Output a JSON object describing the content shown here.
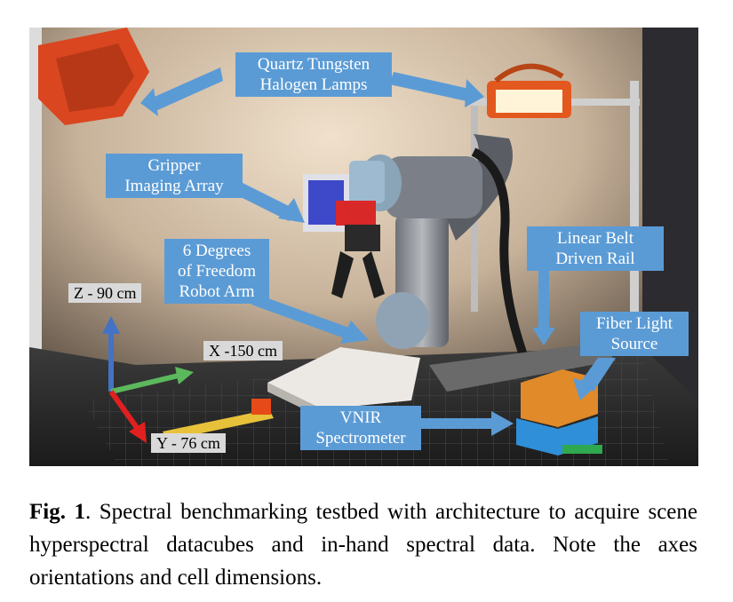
{
  "figure": {
    "callouts": {
      "lamps_line1": "Quartz Tungsten",
      "lamps_line2": "Halogen Lamps",
      "gripper_line1": "Gripper",
      "gripper_line2": "Imaging Array",
      "arm_line1": "6 Degrees",
      "arm_line2": "of Freedom",
      "arm_line3": "Robot Arm",
      "rail_line1": "Linear Belt",
      "rail_line2": "Driven Rail",
      "fiber_line1": "Fiber Light",
      "fiber_line2": "Source",
      "vnir_line1": "VNIR",
      "vnir_line2": "Spectrometer"
    },
    "axes": {
      "z": "Z - 90 cm",
      "x": "X -150 cm",
      "y": "Y - 76 cm"
    },
    "colors": {
      "callout": "#5b9bd5",
      "axis_z": "#4472c4",
      "axis_x": "#5cb85c",
      "axis_y": "#e02020"
    }
  },
  "caption": {
    "label": "Fig. 1",
    "text": ". Spectral benchmarking testbed with architecture to acquire scene hyperspectral datacubes and in-hand spectral data. Note the axes orientations and cell dimensions."
  }
}
